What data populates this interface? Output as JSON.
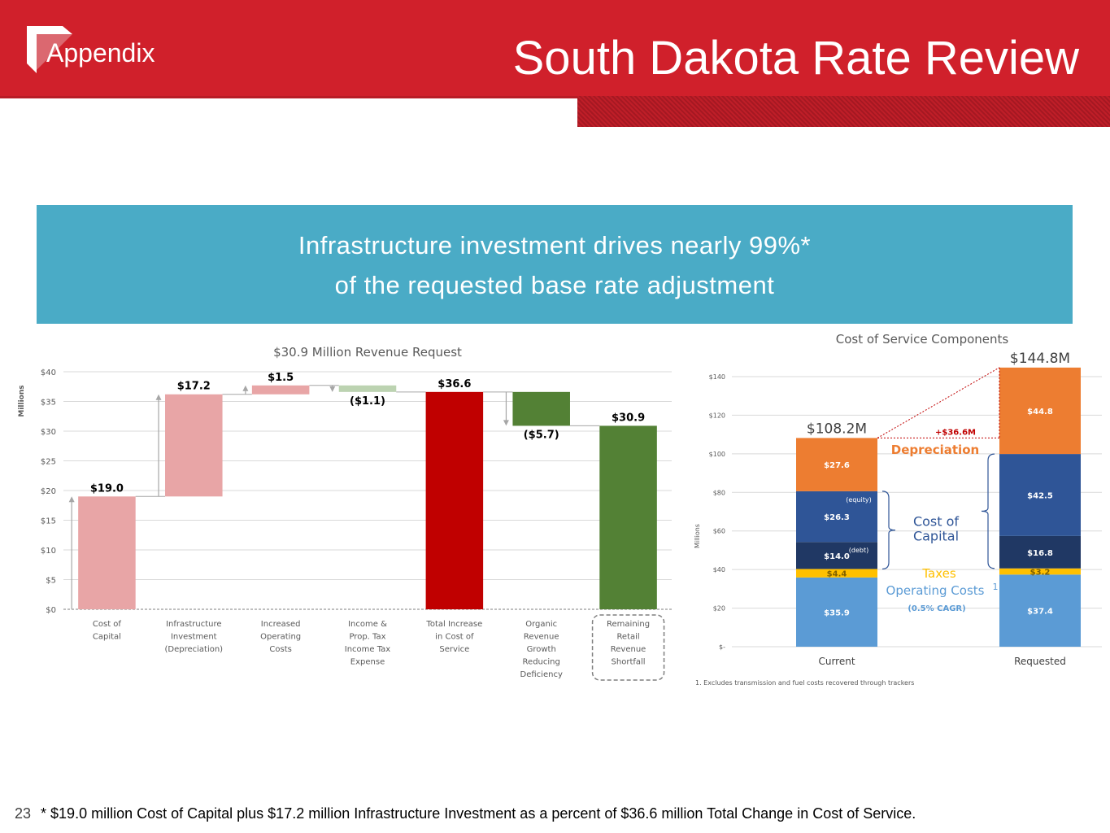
{
  "header": {
    "section_label": "Appendix",
    "title": "South Dakota Rate Review"
  },
  "banner": {
    "line1": "Infrastructure investment drives nearly 99%*",
    "line2": "of the requested base rate adjustment"
  },
  "footer": {
    "page_number": "23",
    "note": "* $19.0 million Cost of Capital plus $17.2 million Infrastructure Investment as a percent of $36.6 million Total Change in Cost of Service."
  },
  "colors": {
    "brand_red": "#d0202b",
    "banner_blue": "#4aabc6",
    "light_red": "#e8a5a6",
    "dark_red": "#c00000",
    "light_green": "#bcd3b1",
    "dark_green": "#538135",
    "orange": "#ed7d31",
    "mid_blue": "#2f5597",
    "navy": "#203864",
    "gold": "#ffc000",
    "light_blue": "#5b9bd5"
  },
  "chart_data": [
    {
      "type": "bar",
      "subtype": "waterfall",
      "title": "$30.9 Million Revenue Request",
      "ylabel": "Millions",
      "ylim": [
        0,
        40
      ],
      "yticks": [
        "$0",
        "$5",
        "$10",
        "$15",
        "$20",
        "$25",
        "$30",
        "$35",
        "$40"
      ],
      "bars": [
        {
          "category": "Cost of Capital",
          "category_lines": [
            "Cost of",
            "Capital"
          ],
          "start": 0,
          "end": 19.0,
          "label": "$19.0",
          "color": "#e8a5a6",
          "arrow": "up"
        },
        {
          "category": "Infrastructure Investment (Depreciation)",
          "category_lines": [
            "Infrastructure",
            "Investment",
            "(Depreciation)"
          ],
          "start": 19.0,
          "end": 36.2,
          "label": "$17.2",
          "color": "#e8a5a6",
          "arrow": "up"
        },
        {
          "category": "Increased Operating Costs",
          "category_lines": [
            "Increased",
            "Operating",
            "Costs"
          ],
          "start": 36.2,
          "end": 37.7,
          "label": "$1.5",
          "color": "#e8a5a6",
          "arrow": "up"
        },
        {
          "category": "Income & Prop. Tax Income Tax Expense",
          "category_lines": [
            "Income &",
            "Prop. Tax",
            "Income Tax",
            "Expense"
          ],
          "start": 37.7,
          "end": 36.6,
          "label": "($1.1)",
          "color": "#bcd3b1",
          "arrow": "down"
        },
        {
          "category": "Total Increase in Cost of Service",
          "category_lines": [
            "Total Increase",
            "in Cost of",
            "Service"
          ],
          "start": 0,
          "end": 36.6,
          "label": "$36.6",
          "color": "#c00000",
          "arrow": ""
        },
        {
          "category": "Organic Revenue Growth Reducing Deficiency",
          "category_lines": [
            "Organic",
            "Revenue",
            "Growth",
            "Reducing",
            "Deficiency"
          ],
          "start": 36.6,
          "end": 30.9,
          "label": "($5.7)",
          "color": "#538135",
          "arrow": "down"
        },
        {
          "category": "Remaining Retail Revenue Shortfall",
          "category_lines": [
            "Remaining",
            "Retail",
            "Revenue",
            "Shortfall"
          ],
          "start": 0,
          "end": 30.9,
          "label": "$30.9",
          "color": "#538135",
          "arrow": "",
          "highlight": true
        }
      ]
    },
    {
      "type": "bar",
      "subtype": "stacked",
      "title": "Cost of Service Components",
      "ylabel": "Millions",
      "ylim": [
        0,
        140
      ],
      "yticks": [
        "$-",
        "$20",
        "$40",
        "$60",
        "$80",
        "$100",
        "$120",
        "$140"
      ],
      "categories": [
        "Current",
        "Requested"
      ],
      "totals": [
        "$108.2M",
        "$144.8M"
      ],
      "change_label": "+$36.6M",
      "series": [
        {
          "name": "Operating Costs",
          "values": [
            35.9,
            37.4
          ],
          "labels": [
            "$35.9",
            "$37.4"
          ],
          "color": "#5b9bd5"
        },
        {
          "name": "Taxes",
          "values": [
            4.4,
            3.2
          ],
          "labels": [
            "$4.4",
            "$3.2"
          ],
          "color": "#ffc000"
        },
        {
          "name": "Cost of Capital (debt)",
          "values": [
            14.0,
            16.8
          ],
          "labels": [
            "$14.0",
            "$16.8"
          ],
          "color": "#203864",
          "tag": "(debt)"
        },
        {
          "name": "Cost of Capital (equity)",
          "values": [
            26.3,
            42.5
          ],
          "labels": [
            "$26.3",
            "$42.5"
          ],
          "color": "#2f5597",
          "tag": "(equity)"
        },
        {
          "name": "Depreciation",
          "values": [
            27.6,
            44.8
          ],
          "labels": [
            "$27.6",
            "$44.8"
          ],
          "color": "#ed7d31"
        }
      ],
      "annotations": {
        "depreciation": "Depreciation",
        "cost_of_capital_line1": "Cost of",
        "cost_of_capital_line2": "Capital",
        "taxes": "Taxes",
        "operating_costs": "Operating Costs",
        "operating_costs_sup": "1",
        "cagr": "(0.5% CAGR)"
      },
      "footnote": "1. Excludes transmission and fuel costs recovered through trackers"
    }
  ]
}
